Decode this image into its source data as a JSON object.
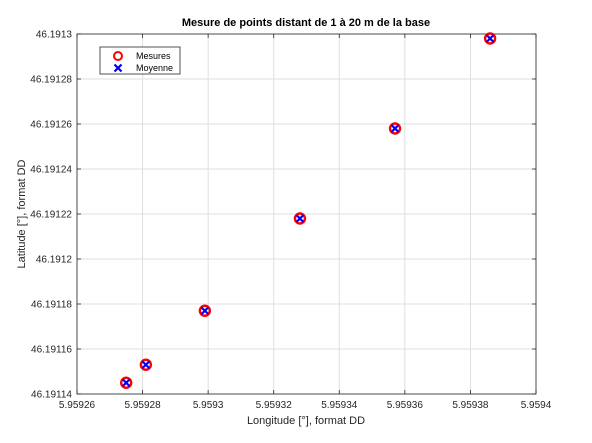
{
  "chart_data": {
    "type": "scatter",
    "title": "Mesure de points distant de 1 à 20 m de la base",
    "xlabel": "Longitude [°], format DD",
    "ylabel": "Latitude [°], format DD",
    "xlim": [
      5.95926,
      5.9594
    ],
    "ylim": [
      46.19114,
      46.1913
    ],
    "x_ticks": [
      5.95926,
      5.95928,
      5.9593,
      5.95932,
      5.95934,
      5.95936,
      5.95938,
      5.9594
    ],
    "x_tick_labels": [
      "5.95926",
      "5.95928",
      "5.9593",
      "5.95932",
      "5.95934",
      "5.95936",
      "5.95938",
      "5.9594"
    ],
    "y_ticks": [
      46.19114,
      46.19116,
      46.19118,
      46.1912,
      46.19122,
      46.19124,
      46.19126,
      46.19128,
      46.1913
    ],
    "y_tick_labels": [
      "46.19114",
      "46.19116",
      "46.19118",
      "46.1912",
      "46.19122",
      "46.19124",
      "46.19126",
      "46.19128",
      "46.1913"
    ],
    "grid": true,
    "legend_position": "top-left",
    "series": [
      {
        "name": "Mesures",
        "marker": "circle",
        "color": "#ff0000",
        "x": [
          5.959275,
          5.959281,
          5.959299,
          5.959328,
          5.959357,
          5.959386
        ],
        "y": [
          46.191145,
          46.191153,
          46.191177,
          46.191218,
          46.191258,
          46.191298
        ]
      },
      {
        "name": "Moyenne",
        "marker": "x",
        "color": "#0000ff",
        "x": [
          5.959275,
          5.959281,
          5.959299,
          5.959328,
          5.959357,
          5.959386
        ],
        "y": [
          46.191145,
          46.191153,
          46.191177,
          46.191218,
          46.191258,
          46.191298
        ]
      }
    ]
  }
}
